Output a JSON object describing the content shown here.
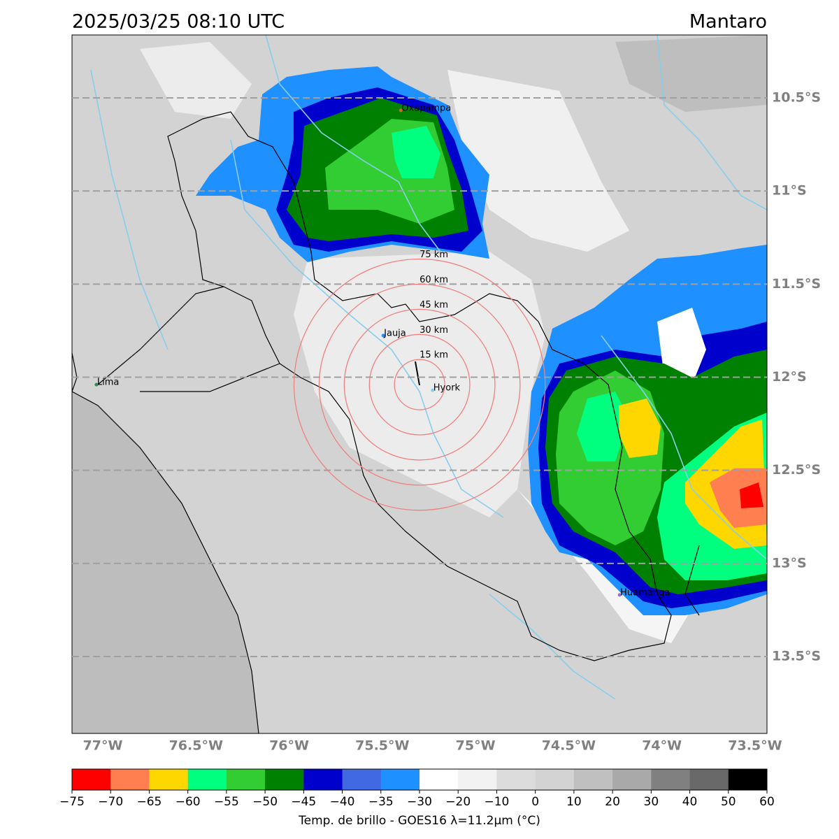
{
  "header": {
    "time": "2025/03/25 08:10 UTC",
    "region": "Mantaro"
  },
  "map": {
    "lon_range": [
      -77.165,
      -73.436
    ],
    "lat_range": [
      -10.162,
      -13.913
    ],
    "grid": true,
    "lat_ticks": [
      {
        "value": -10.5,
        "label": "10.5°S"
      },
      {
        "value": -11,
        "label": "11°S"
      },
      {
        "value": -11.5,
        "label": "11.5°S"
      },
      {
        "value": -12,
        "label": "12°S"
      },
      {
        "value": -12.5,
        "label": "12.5°S"
      },
      {
        "value": -13,
        "label": "13°S"
      },
      {
        "value": -13.5,
        "label": "13.5°S"
      }
    ],
    "lon_ticks": [
      {
        "value": -77,
        "label": "77°W"
      },
      {
        "value": -76.5,
        "label": "76.5°W"
      },
      {
        "value": -76,
        "label": "76°W"
      },
      {
        "value": -75.5,
        "label": "75.5°W"
      },
      {
        "value": -75,
        "label": "75°W"
      },
      {
        "value": -74.5,
        "label": "74.5°W"
      },
      {
        "value": -74,
        "label": "74°W"
      },
      {
        "value": -73.5,
        "label": "73.5°W"
      }
    ],
    "range_rings": {
      "lon": -75.3,
      "lat": -12.04,
      "color": "#f08080",
      "radii": [
        {
          "value": 15,
          "label": "15 km"
        },
        {
          "value": 30,
          "label": "30 km"
        },
        {
          "value": 45,
          "label": "45 km"
        },
        {
          "value": 60,
          "label": "60 km"
        },
        {
          "value": 75,
          "label": "75 km"
        }
      ]
    },
    "places": [
      {
        "name": "Oxapampa",
        "lon": -75.401,
        "lat": -10.567,
        "color": "#d2691e"
      },
      {
        "name": "Jauja",
        "lon": -75.495,
        "lat": -11.776,
        "color": "#1e90ff"
      },
      {
        "name": "Lima",
        "lon": -77.034,
        "lat": -12.04,
        "color": "#2e8b57"
      },
      {
        "name": "Hyork",
        "lon": -75.23,
        "lat": -12.07,
        "color": "#87ceeb"
      },
      {
        "name": "Huamanga",
        "lon": -74.227,
        "lat": -13.169,
        "color": "#9370db"
      }
    ]
  },
  "colorbar": {
    "label": "Temp. de brillo - GOES16 λ=11.2μm (°C)",
    "ticks": [
      {
        "value": -75,
        "label": "−75"
      },
      {
        "value": -70,
        "label": "−70"
      },
      {
        "value": -65,
        "label": "−65"
      },
      {
        "value": -60,
        "label": "−60"
      },
      {
        "value": -55,
        "label": "−55"
      },
      {
        "value": -50,
        "label": "−50"
      },
      {
        "value": -45,
        "label": "−45"
      },
      {
        "value": -40,
        "label": "−40"
      },
      {
        "value": -35,
        "label": "−35"
      },
      {
        "value": -30,
        "label": "−30"
      },
      {
        "value": -20,
        "label": "−20"
      },
      {
        "value": -10,
        "label": "−10"
      },
      0,
      10,
      20,
      30,
      40,
      50,
      60
    ],
    "colors": [
      "#ff0000",
      "#ff7f50",
      "#ffd700",
      "#00ff7f",
      "#32cd32",
      "#008000",
      "#0000cd",
      "#4169e1",
      "#1e90ff",
      "#ffffff",
      "#f2f2f2",
      "#dcdcdc",
      "#d3d3d3",
      "#c0c0c0",
      "#a9a9a9",
      "#808080",
      "#696969",
      "#000000"
    ]
  }
}
